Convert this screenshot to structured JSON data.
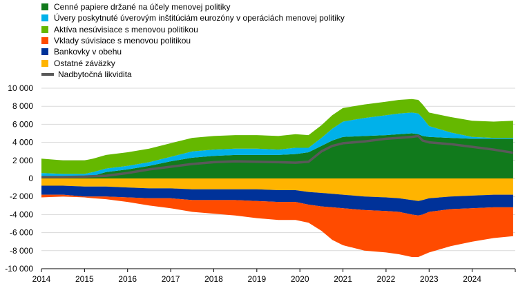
{
  "chart_data": {
    "type": "area",
    "x_ticks": [
      "2014",
      "2015",
      "2016",
      "2017",
      "2018",
      "2019",
      "2020",
      "2021",
      "2022",
      "2023",
      "2024"
    ],
    "y_ticks": [
      "10 000",
      "8 000",
      "6 000",
      "4 000",
      "2 000",
      "0",
      "-2 000",
      "-4 000",
      "-6 000",
      "-8 000",
      "-10 000"
    ],
    "ylim": [
      -10000,
      10000
    ],
    "xlim": [
      2014,
      2025
    ],
    "grid": "horizontal",
    "legend_position": "top-left",
    "x": [
      2014.0,
      2014.5,
      2015.0,
      2015.2,
      2015.5,
      2016.0,
      2016.5,
      2017.0,
      2017.5,
      2018.0,
      2018.5,
      2019.0,
      2019.5,
      2019.9,
      2020.2,
      2020.5,
      2020.75,
      2021.0,
      2021.5,
      2022.0,
      2022.3,
      2022.6,
      2022.75,
      2022.85,
      2023.0,
      2023.5,
      2024.0,
      2024.5,
      2024.95
    ],
    "series": [
      {
        "name": "Cenné papiere držané na účely menovej politiky",
        "color": "#117a1c",
        "sign": "positive",
        "values": [
          100,
          100,
          100,
          300,
          700,
          1000,
          1400,
          1900,
          2300,
          2500,
          2600,
          2600,
          2600,
          2700,
          2900,
          3600,
          4200,
          4600,
          4700,
          4800,
          4900,
          5000,
          4900,
          4700,
          4600,
          4500,
          4400,
          4400,
          4400
        ]
      },
      {
        "name": "Úvery poskytnuté úverovým inštitúciám eurozóny v operáciách menovej politiky",
        "color": "#00b1ea",
        "sign": "positive",
        "values": [
          500,
          400,
          400,
          400,
          400,
          400,
          400,
          500,
          700,
          700,
          700,
          700,
          600,
          700,
          500,
          900,
          1300,
          1700,
          2000,
          2200,
          2300,
          2300,
          2300,
          2000,
          1200,
          600,
          200,
          100,
          100
        ]
      },
      {
        "name": "Aktíva nesúvisiace s menovou politikou",
        "color": "#65b800",
        "sign": "positive",
        "values": [
          1600,
          1500,
          1500,
          1500,
          1500,
          1500,
          1500,
          1500,
          1500,
          1500,
          1500,
          1500,
          1500,
          1500,
          1400,
          1400,
          1500,
          1500,
          1500,
          1500,
          1500,
          1500,
          1500,
          1500,
          1500,
          1700,
          1800,
          1800,
          1900
        ]
      },
      {
        "name": "Ostatné záväzky",
        "color": "#ffb400",
        "sign": "negative",
        "values": [
          800,
          800,
          900,
          900,
          900,
          1000,
          1100,
          1100,
          1200,
          1200,
          1200,
          1200,
          1300,
          1300,
          1500,
          1600,
          1700,
          1800,
          2000,
          2100,
          2200,
          2400,
          2500,
          2400,
          2200,
          2000,
          1900,
          1800,
          1800
        ]
      },
      {
        "name": "Bankovky v obehu",
        "color": "#003299",
        "sign": "negative",
        "values": [
          1000,
          1000,
          1100,
          1100,
          1100,
          1100,
          1100,
          1100,
          1200,
          1200,
          1200,
          1300,
          1300,
          1300,
          1400,
          1500,
          1500,
          1500,
          1500,
          1500,
          1500,
          1600,
          1600,
          1600,
          1500,
          1400,
          1400,
          1400,
          1400
        ]
      },
      {
        "name": "Vklady súvisiace s menovou politikou",
        "color": "#ff4b00",
        "sign": "negative",
        "values": [
          300,
          200,
          100,
          200,
          300,
          500,
          800,
          1100,
          1300,
          1500,
          1700,
          1900,
          2000,
          2000,
          2000,
          2700,
          3600,
          4100,
          4500,
          4600,
          4700,
          4700,
          4600,
          4500,
          4500,
          4100,
          3700,
          3400,
          3200
        ]
      },
      {
        "name": "Nadbytočná likvidita",
        "color": "#595959",
        "type": "line",
        "values": [
          150,
          150,
          200,
          250,
          300,
          600,
          1000,
          1300,
          1600,
          1800,
          1900,
          1850,
          1800,
          1750,
          1850,
          3000,
          3600,
          3900,
          4100,
          4400,
          4500,
          4600,
          4700,
          4200,
          4000,
          3800,
          3500,
          3200,
          2850
        ]
      }
    ]
  }
}
